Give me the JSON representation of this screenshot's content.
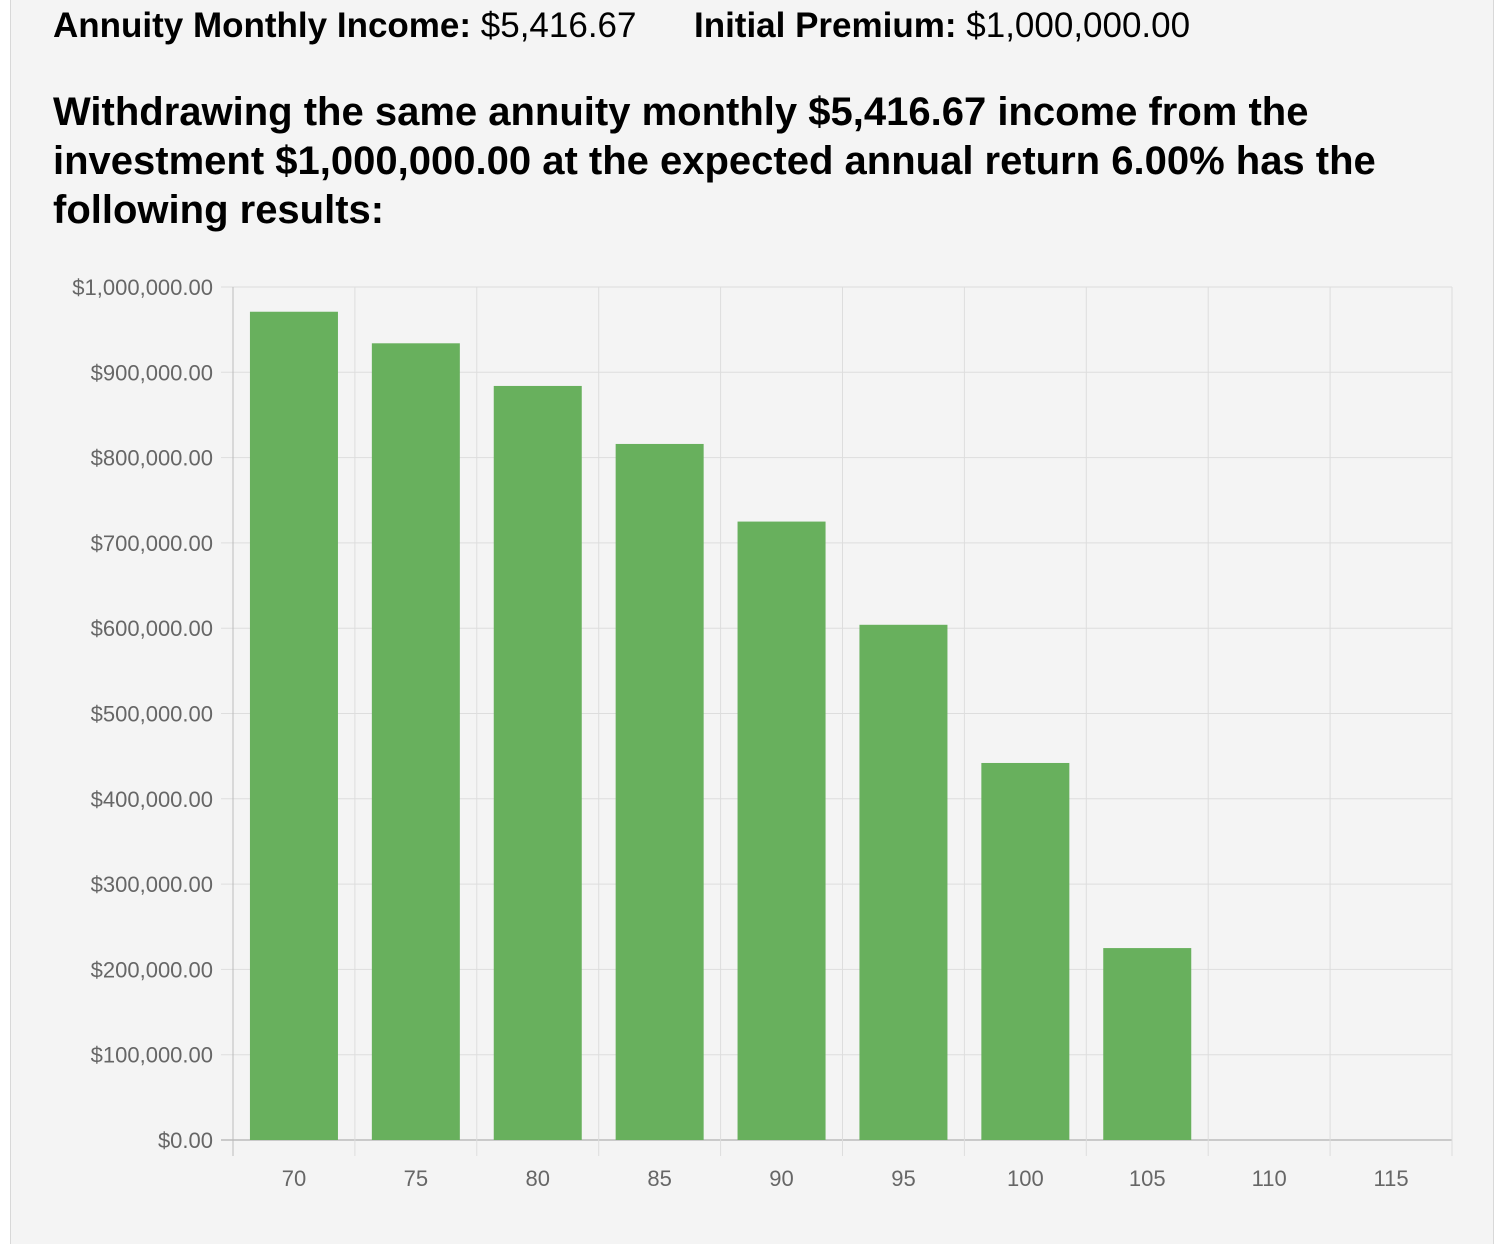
{
  "summary": {
    "income_label": "Annuity Monthly Income:",
    "income_value": "$5,416.67",
    "premium_label": "Initial Premium:",
    "premium_value": "$1,000,000.00"
  },
  "heading": "Withdrawing the same annuity monthly $5,416.67 income from the investment $1,000,000.00 at the expected annual return 6.00% has the following results:",
  "colors": {
    "bar": "#68b05d",
    "grid": "#dddddd",
    "axis": "#bbbbbb"
  },
  "chart_data": {
    "type": "bar",
    "title": "",
    "xlabel": "",
    "ylabel": "",
    "categories": [
      "70",
      "75",
      "80",
      "85",
      "90",
      "95",
      "100",
      "105",
      "110",
      "115"
    ],
    "values": [
      971000,
      934000,
      884000,
      816000,
      725000,
      604000,
      442000,
      225000,
      0,
      0
    ],
    "ylim": [
      0,
      1000000
    ],
    "yticks": [
      "$0.00",
      "$100,000.00",
      "$200,000.00",
      "$300,000.00",
      "$400,000.00",
      "$500,000.00",
      "$600,000.00",
      "$700,000.00",
      "$800,000.00",
      "$900,000.00",
      "$1,000,000.00"
    ],
    "grid": true,
    "legend": "none"
  }
}
